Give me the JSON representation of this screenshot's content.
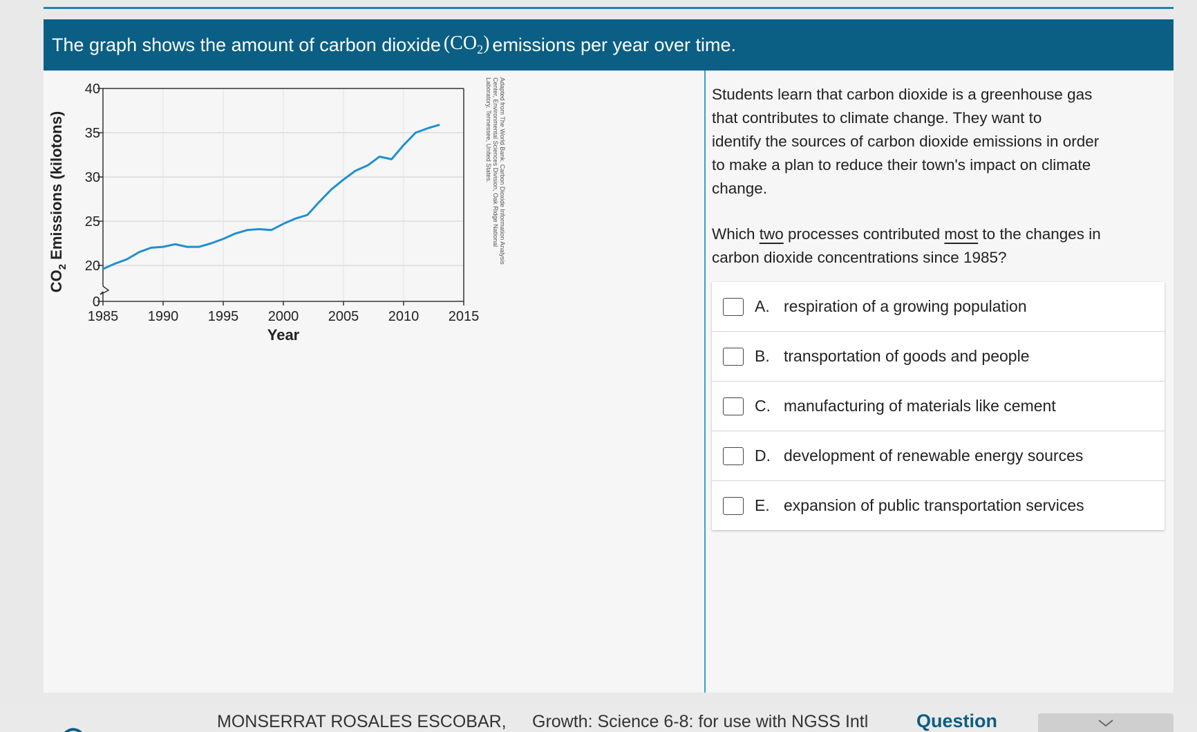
{
  "header": {
    "text_before": "The graph shows the amount of carbon dioxide",
    "co2_paren_open": "(CO",
    "co2_sub": "2",
    "co2_paren_close": ")",
    "text_after": "emissions per year over time."
  },
  "passage": {
    "line1": "Students learn that carbon dioxide is a greenhouse gas",
    "line2": "that contributes to climate change. They want to",
    "line3": "identify the sources of carbon dioxide emissions in order",
    "line4": "to make a plan to reduce their town's impact on climate",
    "line5": "change."
  },
  "question": {
    "part1": "Which ",
    "u1": "two",
    "part2": " processes contributed ",
    "u2": "most",
    "part3": " to the changes in",
    "line2": "carbon dioxide concentrations since 1985?"
  },
  "options": [
    {
      "letter": "A.",
      "text": "respiration of a growing population"
    },
    {
      "letter": "B.",
      "text": "transportation of goods and people"
    },
    {
      "letter": "C.",
      "text": "manufacturing of materials like cement"
    },
    {
      "letter": "D.",
      "text": "development of renewable energy sources"
    },
    {
      "letter": "E.",
      "text": "expansion of public transportation services"
    }
  ],
  "footer": {
    "student_name": "MONSERRAT ROSALES ESCOBAR,",
    "course": "Growth: Science 6-8: for use with NGSS Intl",
    "question_label": "Question"
  },
  "colors": {
    "header_bg": "#0b5e84",
    "accent": "#1a84b8",
    "line": "#1e90d0"
  },
  "chart_data": {
    "type": "line",
    "ylabel_prefix": "CO",
    "ylabel_sub": "2",
    "ylabel_suffix": " Emissions (kilotons)",
    "xlabel": "Year",
    "x_ticks": [
      "1985",
      "1990",
      "1995",
      "2000",
      "2005",
      "2010",
      "2015"
    ],
    "y_ticks": [
      "0",
      "20",
      "25",
      "30",
      "35",
      "40"
    ],
    "xlim": [
      1985,
      2015
    ],
    "ylim_broken": [
      0,
      40
    ],
    "axis_break_between": [
      0,
      20
    ],
    "grid": true,
    "source_note_line1": "Adapted from The World Bank. Carbon Dioxide Information Analysis",
    "source_note_line2": "Center, Environmental Sciences Division, Oak Ridge National",
    "source_note_line3": "Laboratory, Tennessee, United States.",
    "series": [
      {
        "x": [
          1985,
          1986,
          1987,
          1988,
          1989,
          1990,
          1991,
          1992,
          1993,
          1994,
          1995,
          1996,
          1997,
          1998,
          1999,
          2000,
          2001,
          2002,
          2003,
          2004,
          2005,
          2006,
          2007,
          2008,
          2009,
          2010,
          2011,
          2012,
          2013
        ],
        "y": [
          19.6,
          20.2,
          20.7,
          21.5,
          22.0,
          22.1,
          22.4,
          22.1,
          22.1,
          22.5,
          23.0,
          23.6,
          24.0,
          24.1,
          24.0,
          24.7,
          25.3,
          25.7,
          27.2,
          28.6,
          29.7,
          30.7,
          31.3,
          32.3,
          32.0,
          33.6,
          35.0,
          35.5,
          35.9
        ]
      }
    ]
  }
}
